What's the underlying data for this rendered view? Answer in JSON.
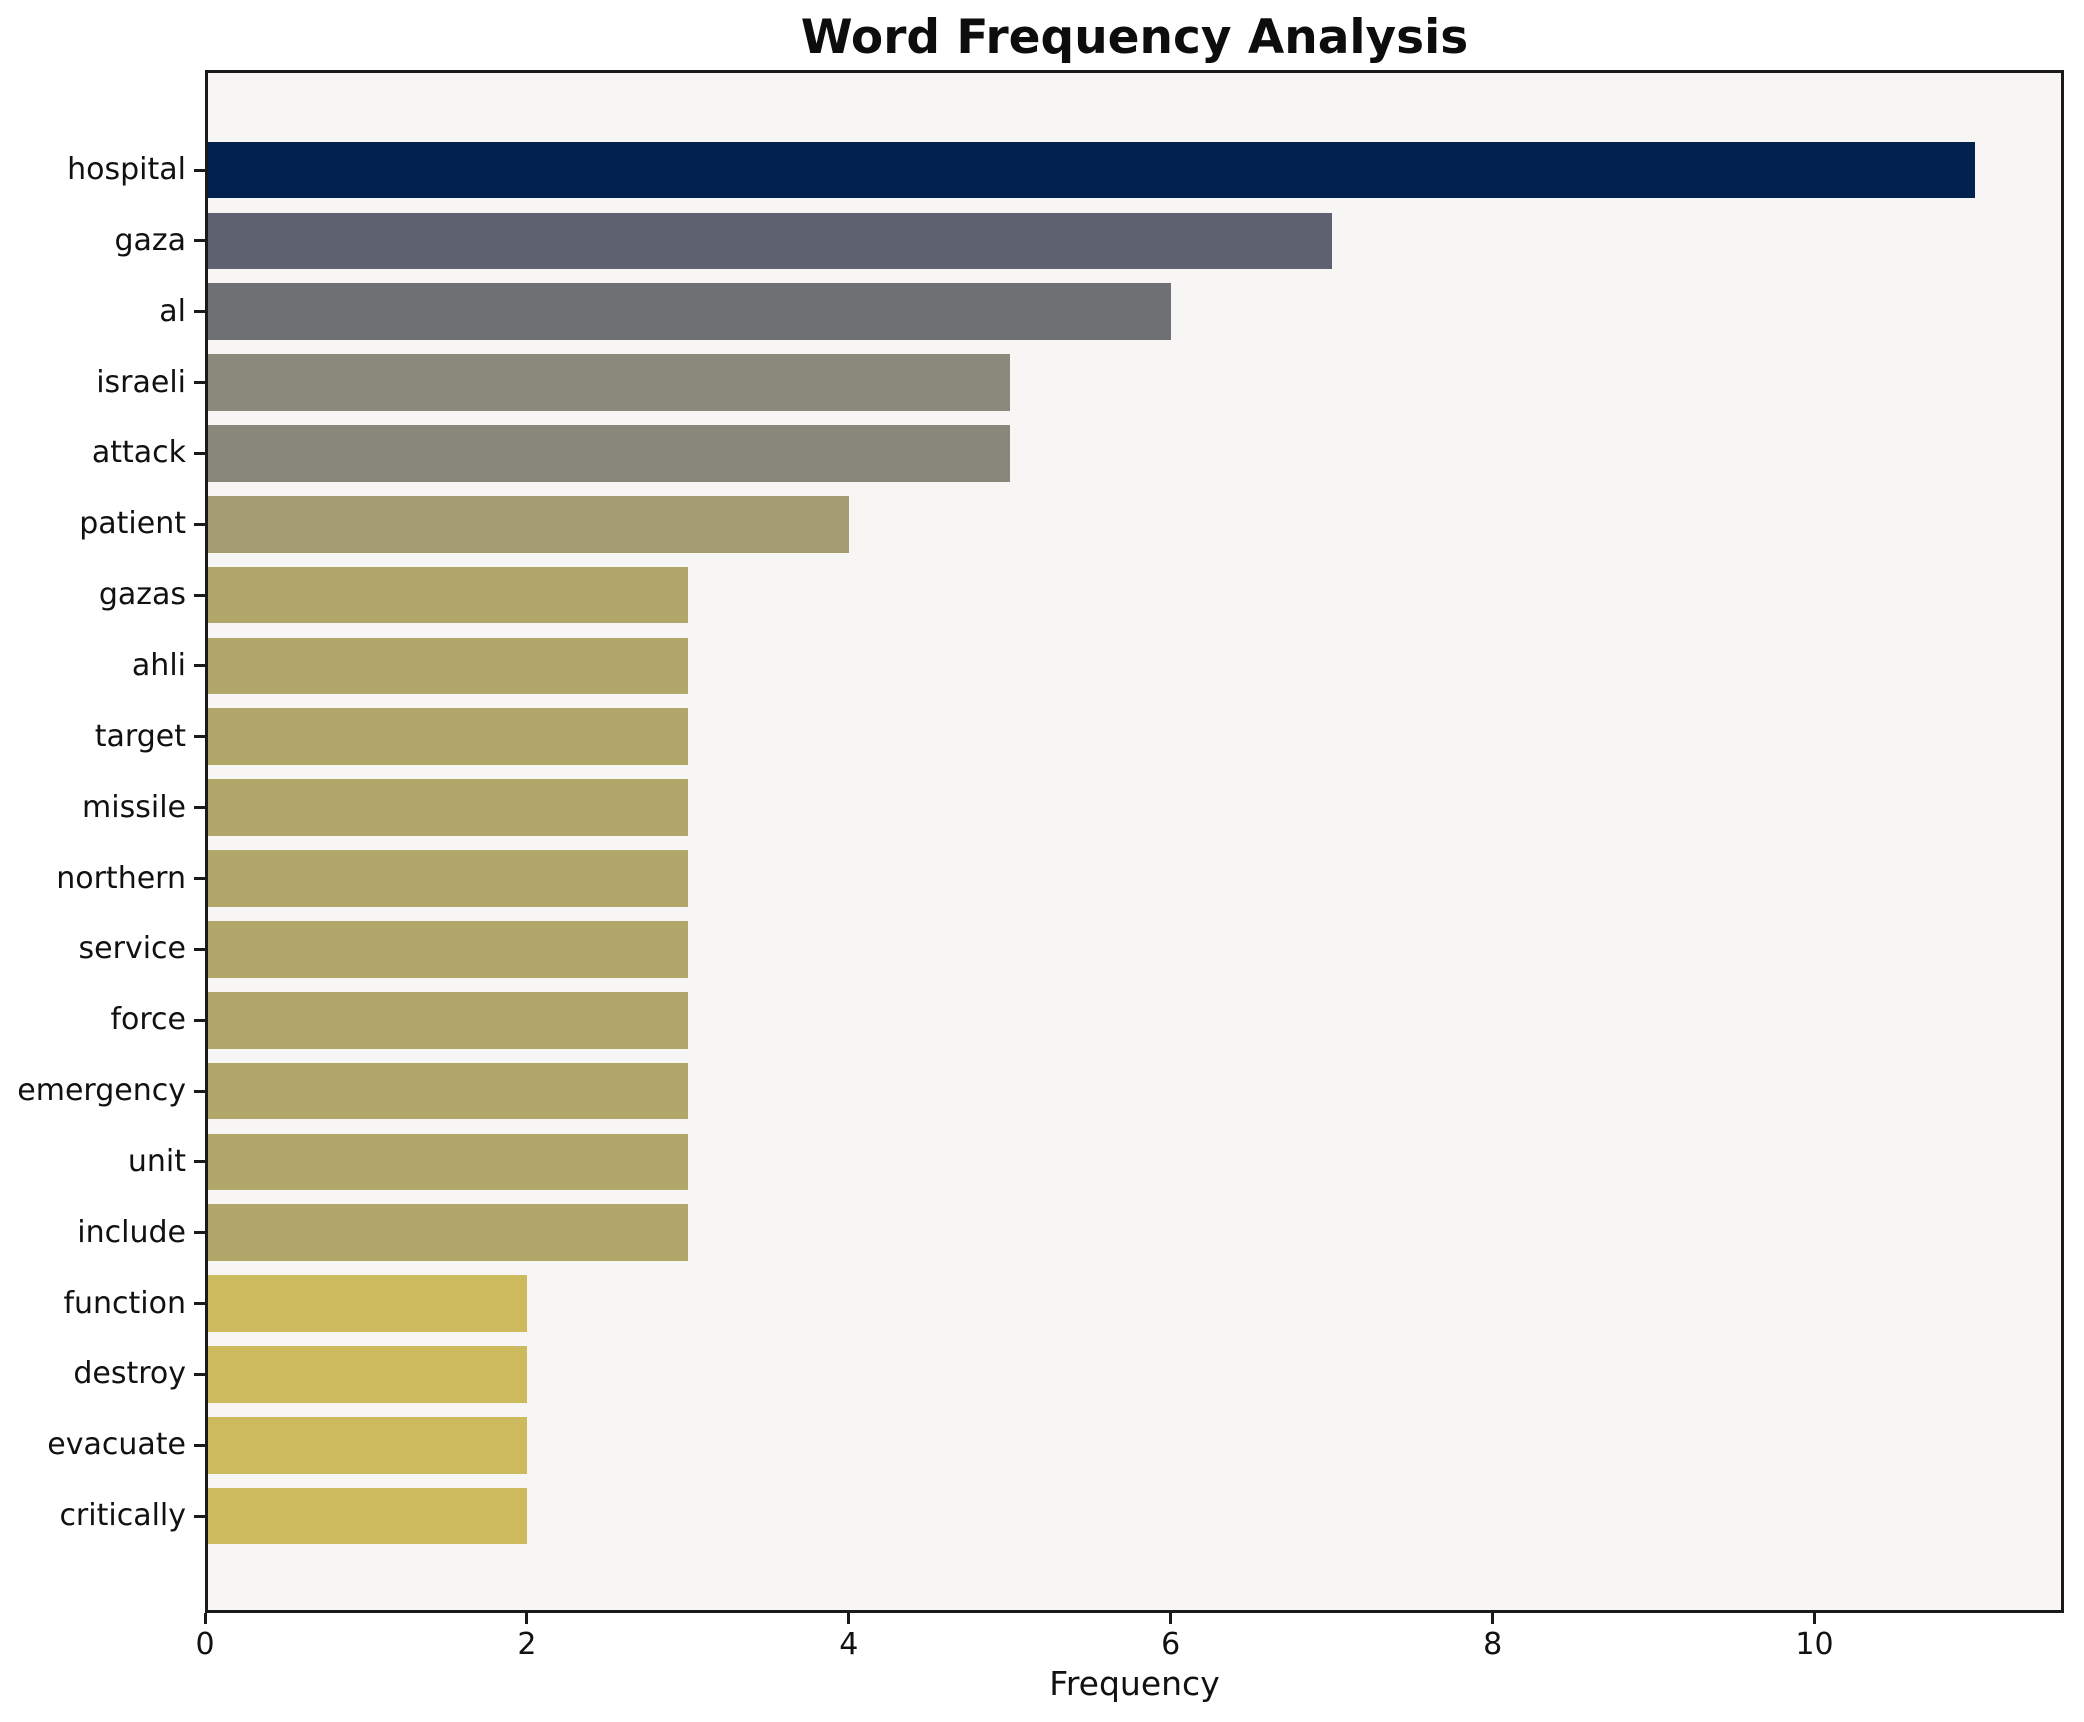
{
  "figure": {
    "background": "#ffffff",
    "plot_background": "#f7f6f4",
    "frame_color": "#1a1a1a",
    "text_color": "#111111"
  },
  "chart_data": {
    "type": "bar",
    "orientation": "horizontal",
    "title": "Word Frequency Analysis",
    "xlabel": "Frequency",
    "ylabel": "",
    "categories": [
      "hospital",
      "gaza",
      "al",
      "israeli",
      "attack",
      "patient",
      "gazas",
      "ahli",
      "target",
      "missile",
      "northern",
      "service",
      "force",
      "emergency",
      "unit",
      "include",
      "function",
      "destroy",
      "evacuate",
      "critically"
    ],
    "values": [
      11,
      7,
      6,
      5,
      5,
      4,
      3,
      3,
      3,
      3,
      3,
      3,
      3,
      3,
      3,
      3,
      2,
      2,
      2,
      2
    ],
    "bar_colors": [
      "#01224e",
      "#5d6170",
      "#6f7073",
      "#898a7c",
      "#87887b",
      "#a59c72",
      "#b2a76a",
      "#b2a76a",
      "#b2a76a",
      "#b2a76a",
      "#b2a76a",
      "#b2a76a",
      "#b2a76a",
      "#b2a76a",
      "#b2a76a",
      "#b2a76a",
      "#cdba5e",
      "#cdba5e",
      "#cdba5e",
      "#cdba5e"
    ],
    "xticks": [
      0,
      2,
      4,
      6,
      8,
      10
    ],
    "xlim": [
      0,
      11.55
    ],
    "grid": false,
    "legend": "none"
  }
}
